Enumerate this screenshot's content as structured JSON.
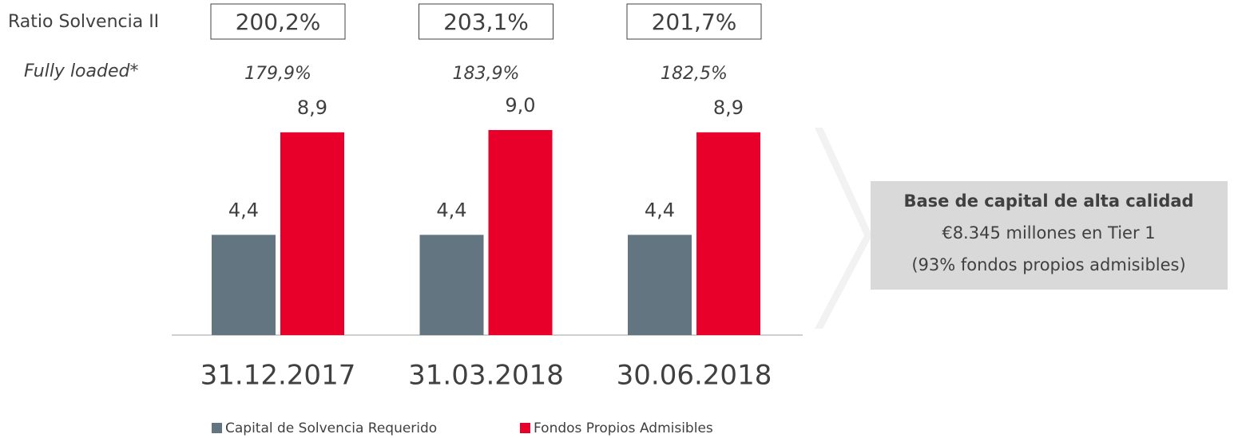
{
  "chart_data": {
    "type": "bar",
    "categories": [
      "31.12.2017",
      "31.03.2018",
      "30.06.2018"
    ],
    "series": [
      {
        "name": "Capital de Solvencia Requerido",
        "color": "#647582",
        "values": [
          4.4,
          4.4,
          4.4
        ],
        "value_labels": [
          "4,4",
          "4,4",
          "4,4"
        ]
      },
      {
        "name": "Fondos Propios Admisibles",
        "color": "#e8002a",
        "values": [
          8.9,
          9.0,
          8.9
        ],
        "value_labels": [
          "8,9",
          "9,0",
          "8,9"
        ]
      }
    ],
    "ratio_title": "Ratio Solvencia II",
    "ratios": [
      "200,2%",
      "203,1%",
      "201,7%"
    ],
    "fully_loaded_title": "Fully loaded*",
    "fully_loaded": [
      "179,9%",
      "183,9%",
      "182,5%"
    ],
    "callout": {
      "title": "Base de capital de alta calidad",
      "lines": [
        "€8.345 millones en Tier 1",
        "(93% fondos propios admisibles)"
      ]
    }
  }
}
